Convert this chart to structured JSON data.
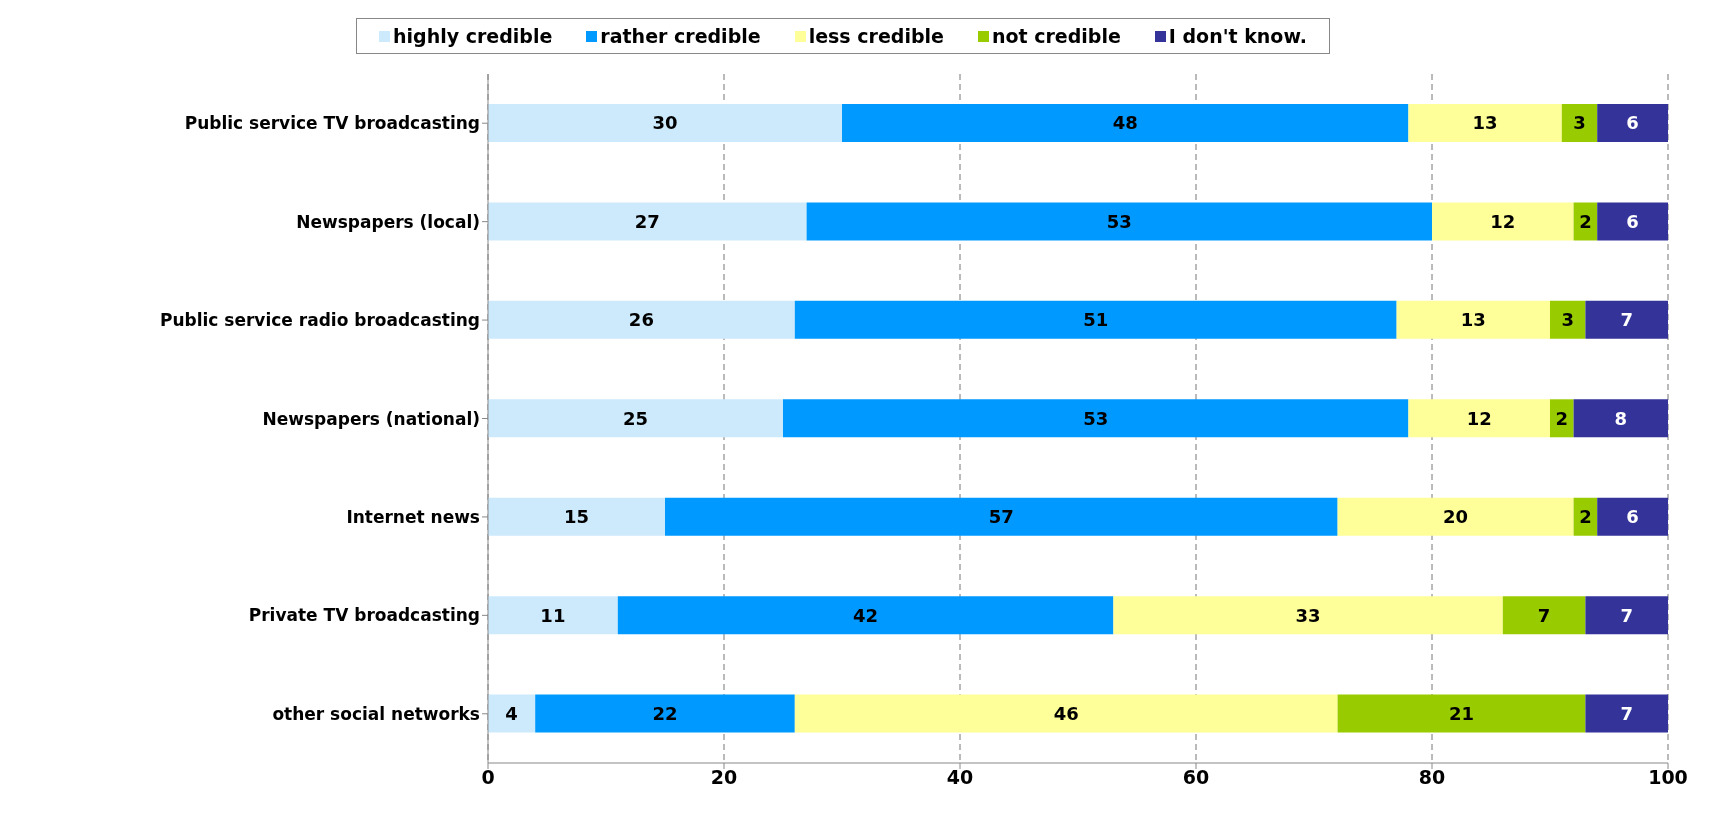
{
  "chart_data": {
    "type": "bar",
    "orientation": "horizontal",
    "stacked": true,
    "data_labels": true,
    "grid": "x",
    "legend": "top",
    "categories": [
      "Public service TV broadcasting",
      "Newspapers (local)",
      "Public service radio broadcasting",
      "Newspapers (national)",
      "Internet news",
      "Private TV broadcasting",
      "other social networks"
    ],
    "series": [
      {
        "name": "highly credible",
        "color": "#cceafc",
        "values": [
          30,
          27,
          26,
          25,
          15,
          11,
          4
        ]
      },
      {
        "name": "rather credible",
        "color": "#0099ff",
        "values": [
          48,
          53,
          51,
          53,
          57,
          42,
          22
        ]
      },
      {
        "name": "less credible",
        "color": "#ffff99",
        "values": [
          13,
          12,
          13,
          12,
          20,
          33,
          46
        ]
      },
      {
        "name": "not credible",
        "color": "#99cc00",
        "values": [
          3,
          2,
          3,
          2,
          2,
          7,
          21
        ]
      },
      {
        "name": "I don't know.",
        "color": "#333399",
        "values": [
          6,
          6,
          7,
          8,
          6,
          7,
          7
        ]
      }
    ],
    "xlim": [
      0,
      100
    ],
    "xticks": [
      0,
      20,
      40,
      60,
      80,
      100
    ]
  }
}
